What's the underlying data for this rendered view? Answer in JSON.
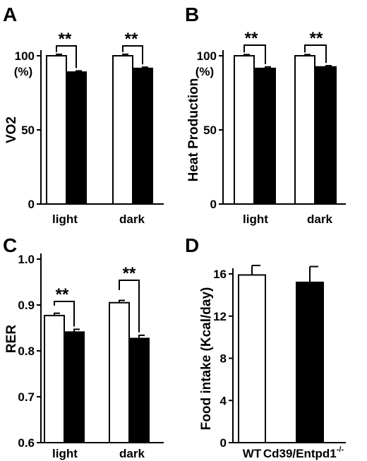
{
  "chart_data": [
    {
      "panel": "A",
      "type": "bar",
      "categories": [
        "light",
        "dark"
      ],
      "series": [
        {
          "fill": "#ffffff",
          "values": [
            100,
            100
          ],
          "errors": [
            1.0,
            1.0
          ]
        },
        {
          "fill": "#000000",
          "values": [
            89,
            91.5
          ],
          "errors": [
            0.8,
            0.8
          ]
        }
      ],
      "ylabel": "VO2",
      "yunit": "(%)",
      "ylim": [
        0,
        100
      ],
      "yticks": [
        "0",
        "50",
        "100"
      ],
      "annotations": [
        "**",
        "**"
      ]
    },
    {
      "panel": "B",
      "type": "bar",
      "categories": [
        "light",
        "dark"
      ],
      "series": [
        {
          "fill": "#ffffff",
          "values": [
            100,
            100
          ],
          "errors": [
            0.8,
            0.8
          ]
        },
        {
          "fill": "#000000",
          "values": [
            91.5,
            92.5
          ],
          "errors": [
            1.0,
            0.8
          ]
        }
      ],
      "ylabel": "Heat Production",
      "yunit": "(%)",
      "ylim": [
        0,
        100
      ],
      "yticks": [
        "0",
        "50",
        "100"
      ],
      "annotations": [
        "**",
        "**"
      ]
    },
    {
      "panel": "C",
      "type": "bar",
      "categories": [
        "light",
        "dark"
      ],
      "series": [
        {
          "fill": "#ffffff",
          "values": [
            0.877,
            0.905
          ],
          "errors": [
            0.005,
            0.005
          ]
        },
        {
          "fill": "#000000",
          "values": [
            0.841,
            0.827
          ],
          "errors": [
            0.006,
            0.007
          ]
        }
      ],
      "ylabel": "RER",
      "ylim": [
        0.6,
        1.0
      ],
      "yticks": [
        "0.6",
        "0.7",
        "0.8",
        "0.9",
        "1.0"
      ],
      "annotations": [
        "**",
        "**"
      ]
    },
    {
      "panel": "D",
      "type": "bar",
      "categories": [
        "WT",
        "Cd39/Entpd1"
      ],
      "category_superscripts": [
        "",
        "-/-"
      ],
      "series": [
        {
          "fill": "#ffffff",
          "values": [
            15.9,
            15.2
          ],
          "errors": [
            0.9,
            1.5
          ],
          "fills": [
            "#ffffff",
            "#000000"
          ]
        }
      ],
      "ylabel": "Food intake (Kcal/day)",
      "ylim": [
        0,
        16
      ],
      "yticks": [
        "0",
        "4",
        "8",
        "12",
        "16"
      ]
    }
  ]
}
